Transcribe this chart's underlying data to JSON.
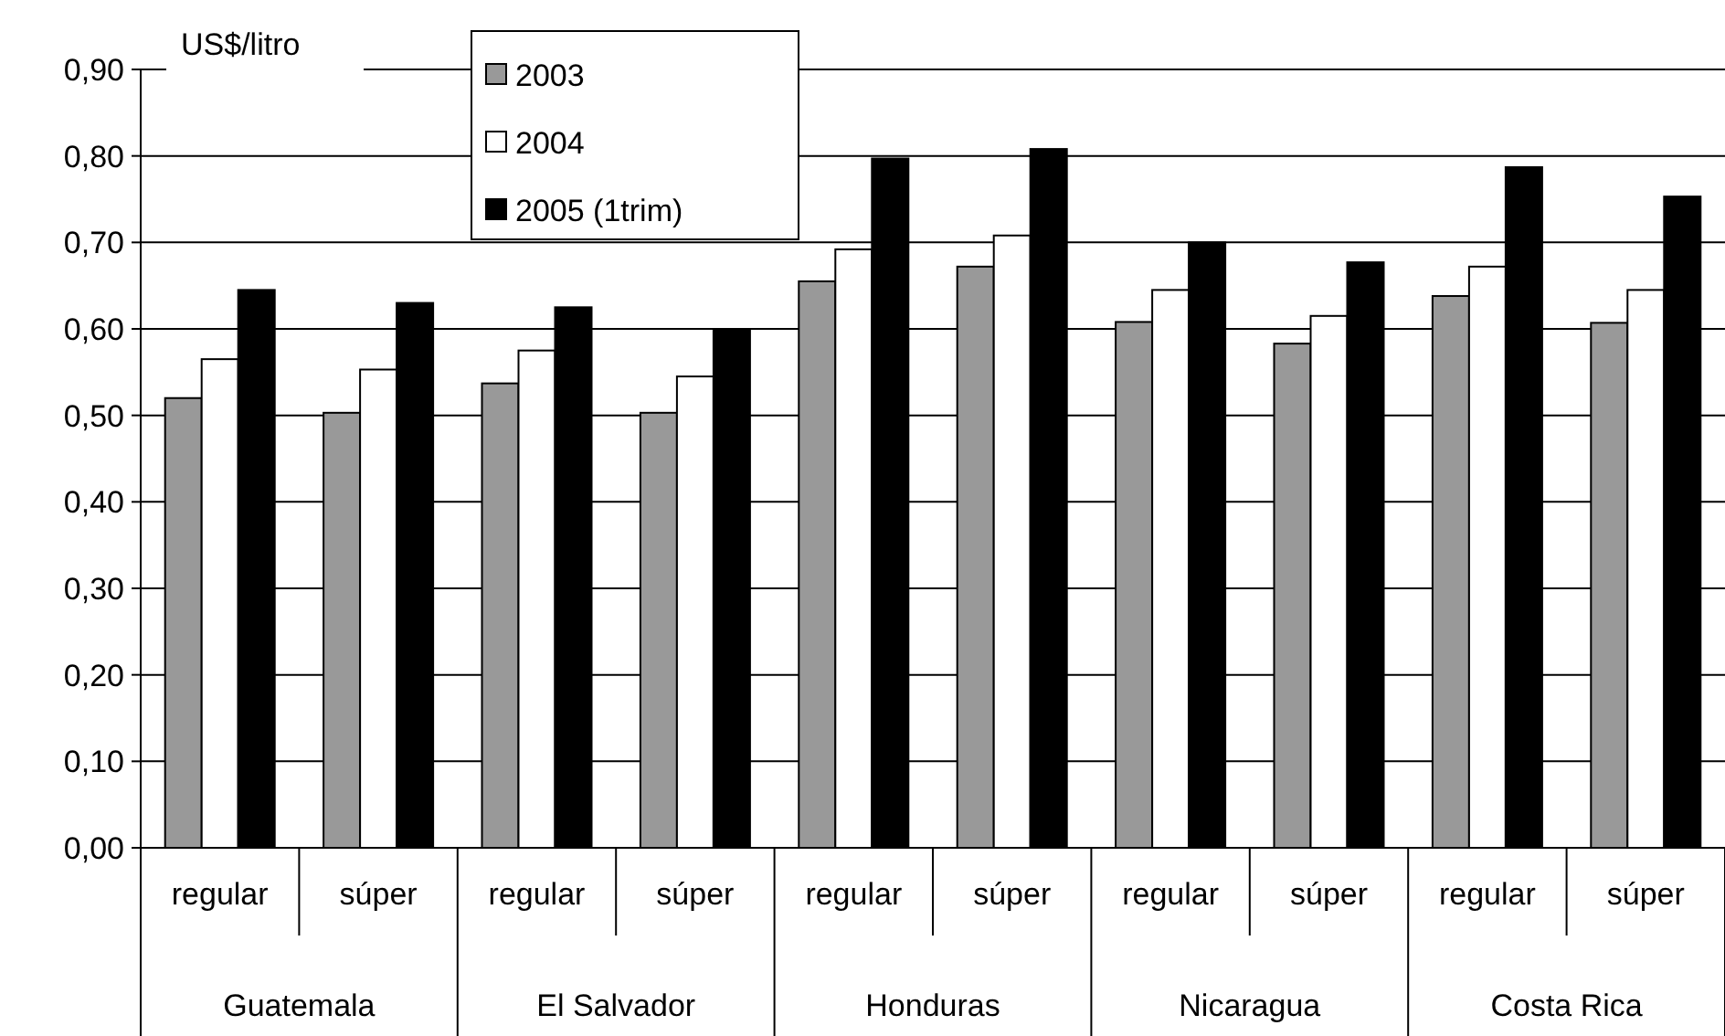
{
  "chart_data": {
    "type": "bar",
    "ylabel": "US$/litro",
    "categories": [
      "regular",
      "súper",
      "regular",
      "súper",
      "regular",
      "súper",
      "regular",
      "súper",
      "regular",
      "súper"
    ],
    "annotations": [
      "Guatemala",
      "El Salvador",
      "Honduras",
      "Nicaragua",
      "Costa Rica"
    ],
    "series": [
      {
        "name": "2003",
        "color": "#999999",
        "values": [
          0.52,
          0.503,
          0.537,
          0.503,
          0.655,
          0.672,
          0.608,
          0.583,
          0.638,
          0.607
        ]
      },
      {
        "name": "2004",
        "color": "#ffffff",
        "values": [
          0.565,
          0.553,
          0.575,
          0.545,
          0.692,
          0.708,
          0.645,
          0.615,
          0.672,
          0.645
        ]
      },
      {
        "name": "2005 (1trim)",
        "color": "#000000",
        "values": [
          0.645,
          0.63,
          0.625,
          0.598,
          0.797,
          0.808,
          0.7,
          0.677,
          0.787,
          0.753
        ]
      }
    ],
    "ylim": [
      0,
      0.9
    ],
    "yticks": [
      {
        "value": 0,
        "label": "0,00"
      },
      {
        "value": 0.1,
        "label": "0,10"
      },
      {
        "value": 0.2,
        "label": "0,20"
      },
      {
        "value": 0.3,
        "label": "0,30"
      },
      {
        "value": 0.4,
        "label": "0,40"
      },
      {
        "value": 0.5,
        "label": "0,50"
      },
      {
        "value": 0.6,
        "label": "0,60"
      },
      {
        "value": 0.7,
        "label": "0,70"
      },
      {
        "value": 0.8,
        "label": "0,80"
      },
      {
        "value": 0.9,
        "label": "0,90"
      }
    ],
    "grid": "y",
    "legend": "top"
  }
}
